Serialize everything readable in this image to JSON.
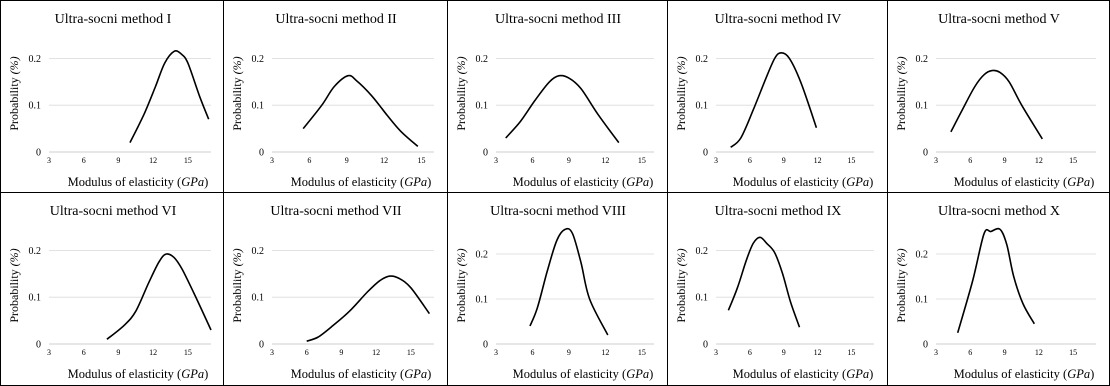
{
  "chart_data": [
    {
      "type": "line",
      "title": "Ultra-socni method I",
      "xlabel": "Modulus of elasticity",
      "xlabel_unit": "GPa",
      "ylabel": "Probability",
      "ylabel_unit": "%",
      "xticks": [
        "3",
        "6",
        "9",
        "12",
        "15"
      ],
      "yticks": [
        "0",
        "0.1",
        "0.2"
      ],
      "xlim": [
        3,
        17
      ],
      "ylim": [
        0,
        0.25
      ],
      "grid": "horizontal",
      "x": [
        10.0,
        11.2,
        12.2,
        13.0,
        13.8,
        14.4,
        15.0,
        16.0,
        16.8
      ],
      "y": [
        0.02,
        0.08,
        0.14,
        0.19,
        0.215,
        0.21,
        0.19,
        0.12,
        0.07
      ]
    },
    {
      "type": "line",
      "title": "Ultra-socni method II",
      "xlabel": "Modulus of elasticity",
      "xlabel_unit": "GPa",
      "ylabel": "Probability",
      "ylabel_unit": "%",
      "xticks": [
        "3",
        "6",
        "9",
        "12",
        "15"
      ],
      "yticks": [
        "0",
        "0.1",
        "0.2"
      ],
      "xlim": [
        3,
        16
      ],
      "ylim": [
        0,
        0.25
      ],
      "grid": "horizontal",
      "x": [
        5.5,
        7.0,
        8.0,
        9.1,
        9.8,
        11.0,
        12.2,
        13.3,
        14.7
      ],
      "y": [
        0.05,
        0.1,
        0.14,
        0.163,
        0.152,
        0.12,
        0.08,
        0.045,
        0.012
      ]
    },
    {
      "type": "line",
      "title": "Ultra-socni method III",
      "xlabel": "Modulus of elasticity",
      "xlabel_unit": "GPa",
      "ylabel": "Probability",
      "ylabel_unit": "%",
      "xticks": [
        "3",
        "6",
        "9",
        "12",
        "15"
      ],
      "yticks": [
        "0",
        "0.1",
        "0.2"
      ],
      "xlim": [
        3,
        16
      ],
      "ylim": [
        0,
        0.25
      ],
      "grid": "horizontal",
      "x": [
        3.8,
        5.0,
        6.2,
        7.4,
        8.2,
        9.0,
        10.0,
        11.4,
        13.1
      ],
      "y": [
        0.03,
        0.065,
        0.11,
        0.15,
        0.163,
        0.158,
        0.135,
        0.08,
        0.02
      ]
    },
    {
      "type": "line",
      "title": "Ultra-socni method IV",
      "xlabel": "Modulus of elasticity",
      "xlabel_unit": "GPa",
      "ylabel": "Probability",
      "ylabel_unit": "%",
      "xticks": [
        "3",
        "6",
        "9",
        "12",
        "15"
      ],
      "yticks": [
        "0",
        "0.1",
        "0.2"
      ],
      "xlim": [
        3,
        17
      ],
      "ylim": [
        0,
        0.25
      ],
      "grid": "horizontal",
      "x": [
        4.3,
        5.2,
        6.3,
        7.3,
        8.2,
        8.8,
        9.5,
        10.5,
        11.9
      ],
      "y": [
        0.01,
        0.03,
        0.09,
        0.15,
        0.2,
        0.212,
        0.2,
        0.15,
        0.052
      ]
    },
    {
      "type": "line",
      "title": "Ultra-socni method V",
      "xlabel": "Modulus of elasticity",
      "xlabel_unit": "GPa",
      "ylabel": "Probability",
      "ylabel_unit": "%",
      "xticks": [
        "3",
        "6",
        "9",
        "12",
        "15"
      ],
      "yticks": [
        "0",
        "0.1",
        "0.2"
      ],
      "xlim": [
        3,
        17
      ],
      "ylim": [
        0,
        0.25
      ],
      "grid": "horizontal",
      "x": [
        4.3,
        5.3,
        6.4,
        7.2,
        7.9,
        8.6,
        9.4,
        10.5,
        12.3
      ],
      "y": [
        0.043,
        0.09,
        0.14,
        0.165,
        0.174,
        0.17,
        0.15,
        0.1,
        0.028
      ]
    },
    {
      "type": "line",
      "title": "Ultra-socni method VI",
      "xlabel": "Modulus of elasticity",
      "xlabel_unit": "GPa",
      "ylabel": "Probability",
      "ylabel_unit": "%",
      "xticks": [
        "3",
        "6",
        "9",
        "12",
        "15"
      ],
      "yticks": [
        "0",
        "0.1",
        "0.2"
      ],
      "xlim": [
        3,
        17
      ],
      "ylim": [
        0,
        0.25
      ],
      "grid": "horizontal",
      "x": [
        8.0,
        9.5,
        10.5,
        11.6,
        12.5,
        13.1,
        13.8,
        14.5,
        15.5,
        17.0
      ],
      "y": [
        0.01,
        0.04,
        0.07,
        0.13,
        0.175,
        0.192,
        0.185,
        0.16,
        0.11,
        0.03
      ]
    },
    {
      "type": "line",
      "title": "Ultra-socni method VII",
      "xlabel": "Modulus of elasticity",
      "xlabel_unit": "GPa",
      "ylabel": "Probability",
      "ylabel_unit": "%",
      "xticks": [
        "3",
        "6",
        "9",
        "12",
        "15"
      ],
      "yticks": [
        "0",
        "0.1",
        "0.2"
      ],
      "xlim": [
        3,
        17
      ],
      "ylim": [
        0,
        0.25
      ],
      "grid": "horizontal",
      "x": [
        6.0,
        7.0,
        8.3,
        9.7,
        11.2,
        12.3,
        13.2,
        14.0,
        15.0,
        16.6
      ],
      "y": [
        0.006,
        0.015,
        0.04,
        0.07,
        0.11,
        0.135,
        0.145,
        0.14,
        0.12,
        0.065
      ]
    },
    {
      "type": "line",
      "title": "Ultra-socni method VIII",
      "xlabel": "Modulus of elasticity",
      "xlabel_unit": "GPa",
      "ylabel": "Probability",
      "ylabel_unit": "%",
      "xticks": [
        "3",
        "6",
        "9",
        "12",
        "15"
      ],
      "yticks": [
        "0",
        "0.1",
        "0.2"
      ],
      "xlim": [
        3,
        16
      ],
      "ylim": [
        0,
        0.26
      ],
      "grid": "horizontal",
      "x": [
        5.8,
        6.4,
        7.2,
        8.0,
        8.7,
        9.3,
        10.0,
        10.7,
        12.2
      ],
      "y": [
        0.04,
        0.08,
        0.16,
        0.23,
        0.255,
        0.245,
        0.18,
        0.1,
        0.02
      ]
    },
    {
      "type": "line",
      "title": "Ultra-socni method IX",
      "xlabel": "Modulus of elasticity",
      "xlabel_unit": "GPa",
      "ylabel": "Probability",
      "ylabel_unit": "%",
      "xticks": [
        "3",
        "6",
        "9",
        "12",
        "15"
      ],
      "yticks": [
        "0",
        "0.1",
        "0.2"
      ],
      "xlim": [
        3,
        17
      ],
      "ylim": [
        0,
        0.25
      ],
      "grid": "horizontal",
      "x": [
        4.1,
        4.9,
        5.7,
        6.3,
        6.9,
        7.5,
        8.2,
        8.9,
        9.6,
        10.4
      ],
      "y": [
        0.072,
        0.12,
        0.18,
        0.215,
        0.228,
        0.215,
        0.195,
        0.15,
        0.09,
        0.036
      ]
    },
    {
      "type": "line",
      "title": "Ultra-socni method X",
      "xlabel": "Modulus of elasticity",
      "xlabel_unit": "GPa",
      "ylabel": "Probability",
      "ylabel_unit": "%",
      "xticks": [
        "3",
        "6",
        "9",
        "12",
        "15"
      ],
      "yticks": [
        "0",
        "0.1",
        "0.2"
      ],
      "xlim": [
        3,
        17
      ],
      "ylim": [
        0,
        0.26
      ],
      "grid": "horizontal",
      "x": [
        4.9,
        6.2,
        7.2,
        7.8,
        8.6,
        9.2,
        9.8,
        10.6,
        11.6
      ],
      "y": [
        0.025,
        0.14,
        0.245,
        0.25,
        0.255,
        0.22,
        0.15,
        0.09,
        0.045
      ]
    }
  ]
}
